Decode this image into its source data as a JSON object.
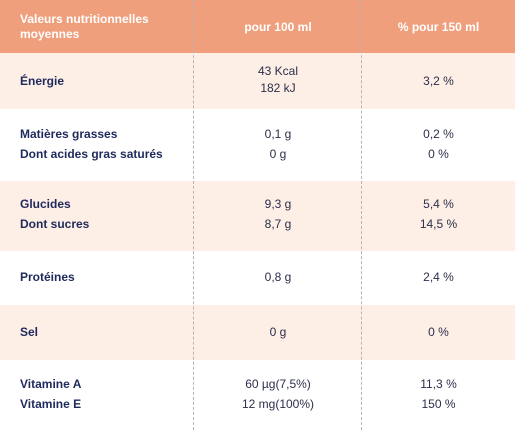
{
  "header": {
    "col1": "Valeurs nutritionnelles moyennes",
    "col2": "pour 100 ml",
    "col3": "% pour 150 ml"
  },
  "rows": [
    {
      "labels": [
        "Énergie"
      ],
      "per100": [
        "43 Kcal",
        "182 kJ"
      ],
      "per150": [
        "3,2 %"
      ]
    },
    {
      "labels": [
        "Matières grasses",
        "Dont acides gras saturés"
      ],
      "per100": [
        "0,1 g",
        "0 g"
      ],
      "per150": [
        "0,2 %",
        "0 %"
      ]
    },
    {
      "labels": [
        "Glucides",
        "Dont sucres"
      ],
      "per100": [
        "9,3 g",
        "8,7 g"
      ],
      "per150": [
        "5,4 %",
        "14,5 %"
      ]
    },
    {
      "labels": [
        "Protéines"
      ],
      "per100": [
        "0,8 g"
      ],
      "per150": [
        "2,4 %"
      ]
    },
    {
      "labels": [
        "Sel"
      ],
      "per100": [
        "0 g"
      ],
      "per150": [
        "0 %"
      ]
    },
    {
      "labels": [
        "Vitamine A",
        "Vitamine E"
      ],
      "per100": [
        "60 µg(7,5%)",
        "12 mg(100%)"
      ],
      "per150": [
        "11,3 %",
        "150 %"
      ]
    }
  ],
  "colors": {
    "header_bg": "#f09f7c",
    "row_shaded": "#fdeee6",
    "label_text": "#1f2a5c"
  }
}
